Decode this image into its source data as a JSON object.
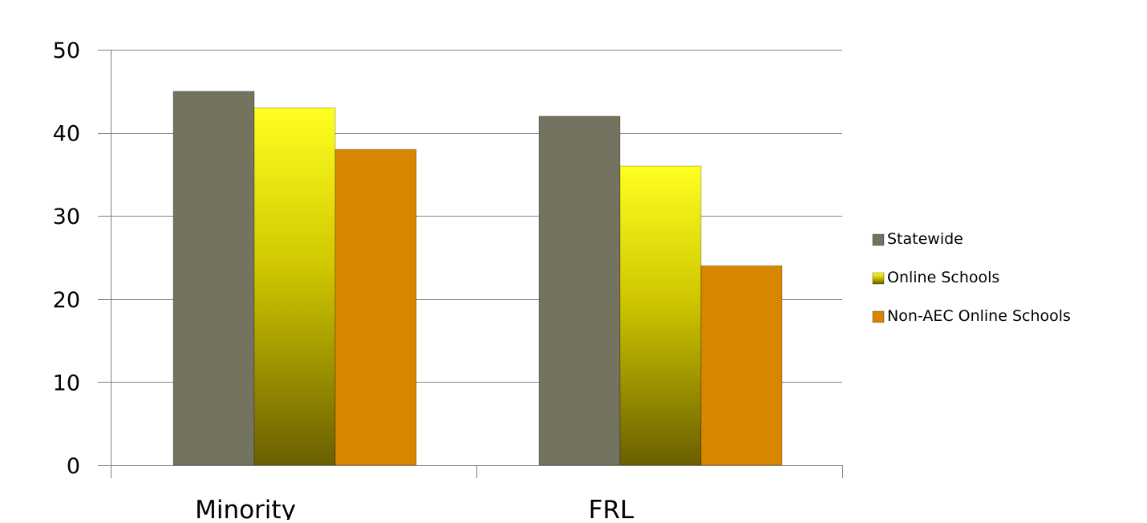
{
  "chart_data": {
    "type": "bar",
    "categories": [
      "Minority",
      "FRL"
    ],
    "series": [
      {
        "name": "Statewide",
        "values": [
          45,
          42
        ],
        "color": "#737360"
      },
      {
        "name": "Online Schools",
        "values": [
          43,
          36
        ],
        "color": "#e8e000"
      },
      {
        "name": "Non-AEC Online Schools",
        "values": [
          38,
          24
        ],
        "color": "#d88600"
      }
    ],
    "yticks": [
      0,
      10,
      20,
      30,
      40,
      50
    ],
    "ylim": [
      0,
      50
    ],
    "grid": true,
    "legend_position": "right"
  },
  "colors": {
    "axis": "#808080",
    "grid": "#868686",
    "online_gradient_top": "#ffff20",
    "online_gradient_mid": "#cfc600",
    "online_gradient_bottom": "#6a5f00"
  }
}
